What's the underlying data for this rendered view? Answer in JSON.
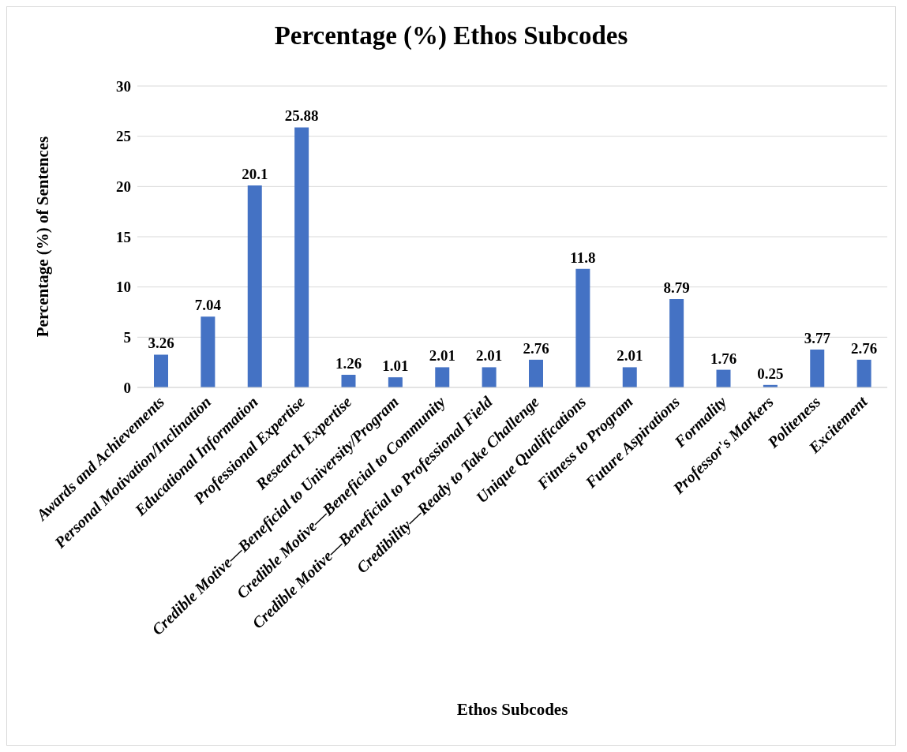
{
  "chart_data": {
    "type": "bar",
    "title": "Percentage (%) Ethos Subcodes",
    "xlabel": "Ethos Subcodes",
    "ylabel": "Percentage (%) of Sentences",
    "categories": [
      "Awards and Achievements",
      "Personal Motivation/Inclination",
      "Educational Information",
      "Professional Expertise",
      "Research Expertise",
      "Credible Motive—Beneficial to University/Program",
      "Credible Motive—Beneficial to Community",
      "Credible Motive—Beneficial to Professional Field",
      "Credibility—Ready to Take Challenge",
      "Unique Qualifications",
      "Fitness to Program",
      "Future Aspirations",
      "Formality",
      "Professor's Markers",
      "Politeness",
      "Excitement"
    ],
    "values": [
      3.26,
      7.04,
      20.1,
      25.88,
      1.26,
      1.01,
      2.01,
      2.01,
      2.76,
      11.8,
      2.01,
      8.79,
      1.76,
      0.25,
      3.77,
      2.76
    ],
    "color": "#4472c4",
    "ylim": [
      0,
      30
    ],
    "yticks": [
      0,
      5,
      10,
      15,
      20,
      25,
      30
    ],
    "grid": "y",
    "data_labels": true
  }
}
